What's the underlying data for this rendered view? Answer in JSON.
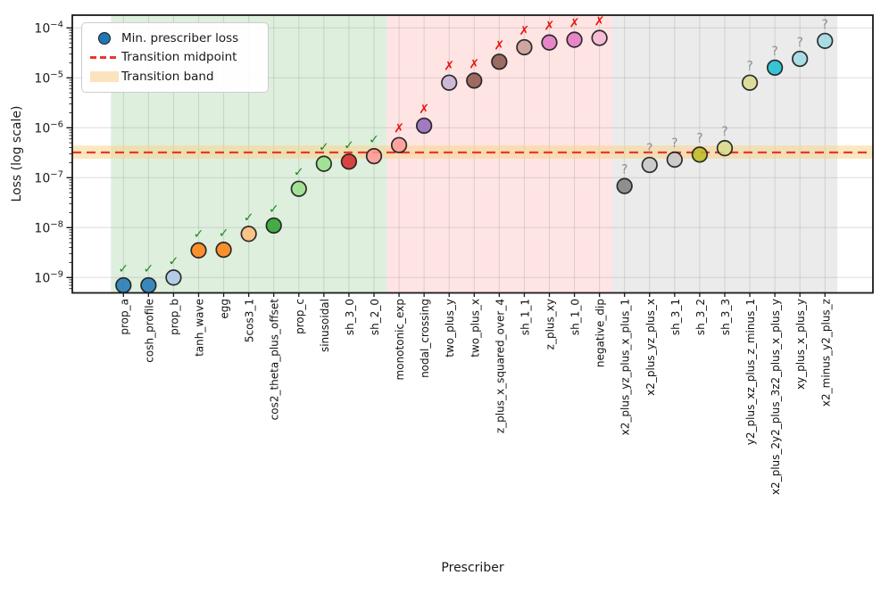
{
  "chart_data": {
    "type": "scatter",
    "title": "",
    "xlabel": "Prescriber",
    "ylabel": "Loss (log scale)",
    "yscale": "log",
    "ylim": [
      5e-10,
      0.00018
    ],
    "ytick_exponents": [
      -4,
      -5,
      -6,
      -7,
      -8,
      -9
    ],
    "grid": true,
    "legend_position": "upper left",
    "legend": [
      {
        "label": "Min. prescriber loss",
        "swatch": "marker",
        "color": "#1f77b4"
      },
      {
        "label": "Transition midpoint",
        "swatch": "dashed-line",
        "color": "#e8382e"
      },
      {
        "label": "Transition band",
        "swatch": "band",
        "color": "#fae3bd"
      }
    ],
    "transition_midpoint": 3.2e-07,
    "transition_band": [
      2.4e-07,
      4.4e-07
    ],
    "band_color": "rgba(248,211,141,0.55)",
    "midline_color": "#e8382e",
    "regions": [
      {
        "name": "pass-region",
        "from_index": -0.5,
        "to_index": 10.5,
        "color": "rgba(0,128,0,0.13)"
      },
      {
        "name": "fail-region",
        "from_index": 10.5,
        "to_index": 19.5,
        "color": "rgba(255,30,30,0.12)"
      },
      {
        "name": "unknown-region",
        "from_index": 19.5,
        "to_index": 28.5,
        "color": "rgba(128,128,128,0.16)"
      }
    ],
    "status_marks": {
      "pass": {
        "glyph": "✓",
        "color": "#1e8a1e"
      },
      "fail": {
        "glyph": "✗",
        "color": "#e8160c"
      },
      "unknown": {
        "glyph": "?",
        "color": "#8e8e8e"
      }
    },
    "points": [
      {
        "label": "prop_a",
        "value": 7e-10,
        "color": "#1f77b4",
        "status": "pass"
      },
      {
        "label": "cosh_profile",
        "value": 7e-10,
        "color": "#1f77b4",
        "status": "pass"
      },
      {
        "label": "prop_b",
        "value": 1e-09,
        "color": "#aec7e8",
        "status": "pass"
      },
      {
        "label": "tanh_wave",
        "value": 3.5e-09,
        "color": "#ff7f0e",
        "status": "pass"
      },
      {
        "label": "egg",
        "value": 3.6e-09,
        "color": "#ff7f0e",
        "status": "pass"
      },
      {
        "label": "5cos3_1",
        "value": 7.5e-09,
        "color": "#ffbb78",
        "status": "pass"
      },
      {
        "label": "cos2_theta_plus_offset",
        "value": 1.1e-08,
        "color": "#2ca02c",
        "status": "pass"
      },
      {
        "label": "prop_c",
        "value": 6e-08,
        "color": "#98df8a",
        "status": "pass"
      },
      {
        "label": "sinusoidal",
        "value": 1.9e-07,
        "color": "#98df8a",
        "status": "pass"
      },
      {
        "label": "sh_3_0",
        "value": 2.1e-07,
        "color": "#d62728",
        "status": "pass"
      },
      {
        "label": "sh_2_0",
        "value": 2.7e-07,
        "color": "#ff9896",
        "status": "pass"
      },
      {
        "label": "monotonic_exp",
        "value": 4.5e-07,
        "color": "#ff9896",
        "status": "fail"
      },
      {
        "label": "nodal_crossing",
        "value": 1.1e-06,
        "color": "#9467bd",
        "status": "fail"
      },
      {
        "label": "two_plus_y",
        "value": 8e-06,
        "color": "#c5b0d5",
        "status": "fail"
      },
      {
        "label": "two_plus_x",
        "value": 8.8e-06,
        "color": "#8c564b",
        "status": "fail"
      },
      {
        "label": "z_plus_x_squared_over_4",
        "value": 2.1e-05,
        "color": "#8c564b",
        "status": "fail"
      },
      {
        "label": "sh_1_1",
        "value": 4.1e-05,
        "color": "#c49c94",
        "status": "fail"
      },
      {
        "label": "z_plus_xy",
        "value": 5.1e-05,
        "color": "#e377c2",
        "status": "fail"
      },
      {
        "label": "sh_1_0",
        "value": 5.8e-05,
        "color": "#e377c2",
        "status": "fail"
      },
      {
        "label": "negative_dip",
        "value": 6.3e-05,
        "color": "#f7b6d2",
        "status": "fail"
      },
      {
        "label": "x2_plus_yz_plus_x_plus_1",
        "value": 6.8e-08,
        "color": "#7f7f7f",
        "status": "unknown"
      },
      {
        "label": "x2_plus_yz_plus_x",
        "value": 1.8e-07,
        "color": "#c7c7c7",
        "status": "unknown"
      },
      {
        "label": "sh_3_1",
        "value": 2.3e-07,
        "color": "#c7c7c7",
        "status": "unknown"
      },
      {
        "label": "sh_3_2",
        "value": 2.9e-07,
        "color": "#bcbd22",
        "status": "unknown"
      },
      {
        "label": "sh_3_3",
        "value": 3.9e-07,
        "color": "#dbdb8d",
        "status": "unknown"
      },
      {
        "label": "y2_plus_xz_plus_z_minus_1",
        "value": 8e-06,
        "color": "#dbdb8d",
        "status": "unknown"
      },
      {
        "label": "x2_plus_2y2_plus_3z2_plus_x_plus_y",
        "value": 1.6e-05,
        "color": "#17becf",
        "status": "unknown"
      },
      {
        "label": "xy_plus_x_plus_y",
        "value": 2.4e-05,
        "color": "#9edae5",
        "status": "unknown"
      },
      {
        "label": "x2_minus_y2_plus_z",
        "value": 5.5e-05,
        "color": "#9edae5",
        "status": "unknown"
      }
    ]
  }
}
